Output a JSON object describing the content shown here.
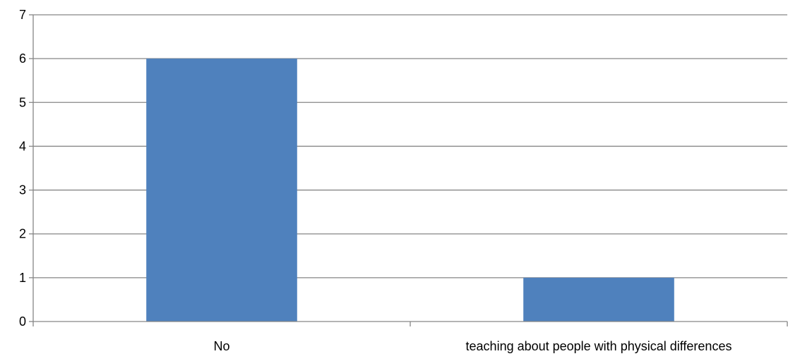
{
  "chart_data": {
    "type": "bar",
    "categories": [
      "No",
      "teaching about people with physical differences"
    ],
    "values": [
      6,
      1
    ],
    "title": "",
    "xlabel": "",
    "ylabel": "",
    "ylim": [
      0,
      7
    ],
    "y_ticks": [
      "0",
      "1",
      "2",
      "3",
      "4",
      "5",
      "6",
      "7"
    ],
    "grid": true,
    "legend": "none",
    "colors": {
      "bar": "#4f81bd",
      "grid": "#868686",
      "axis": "#868686"
    }
  }
}
